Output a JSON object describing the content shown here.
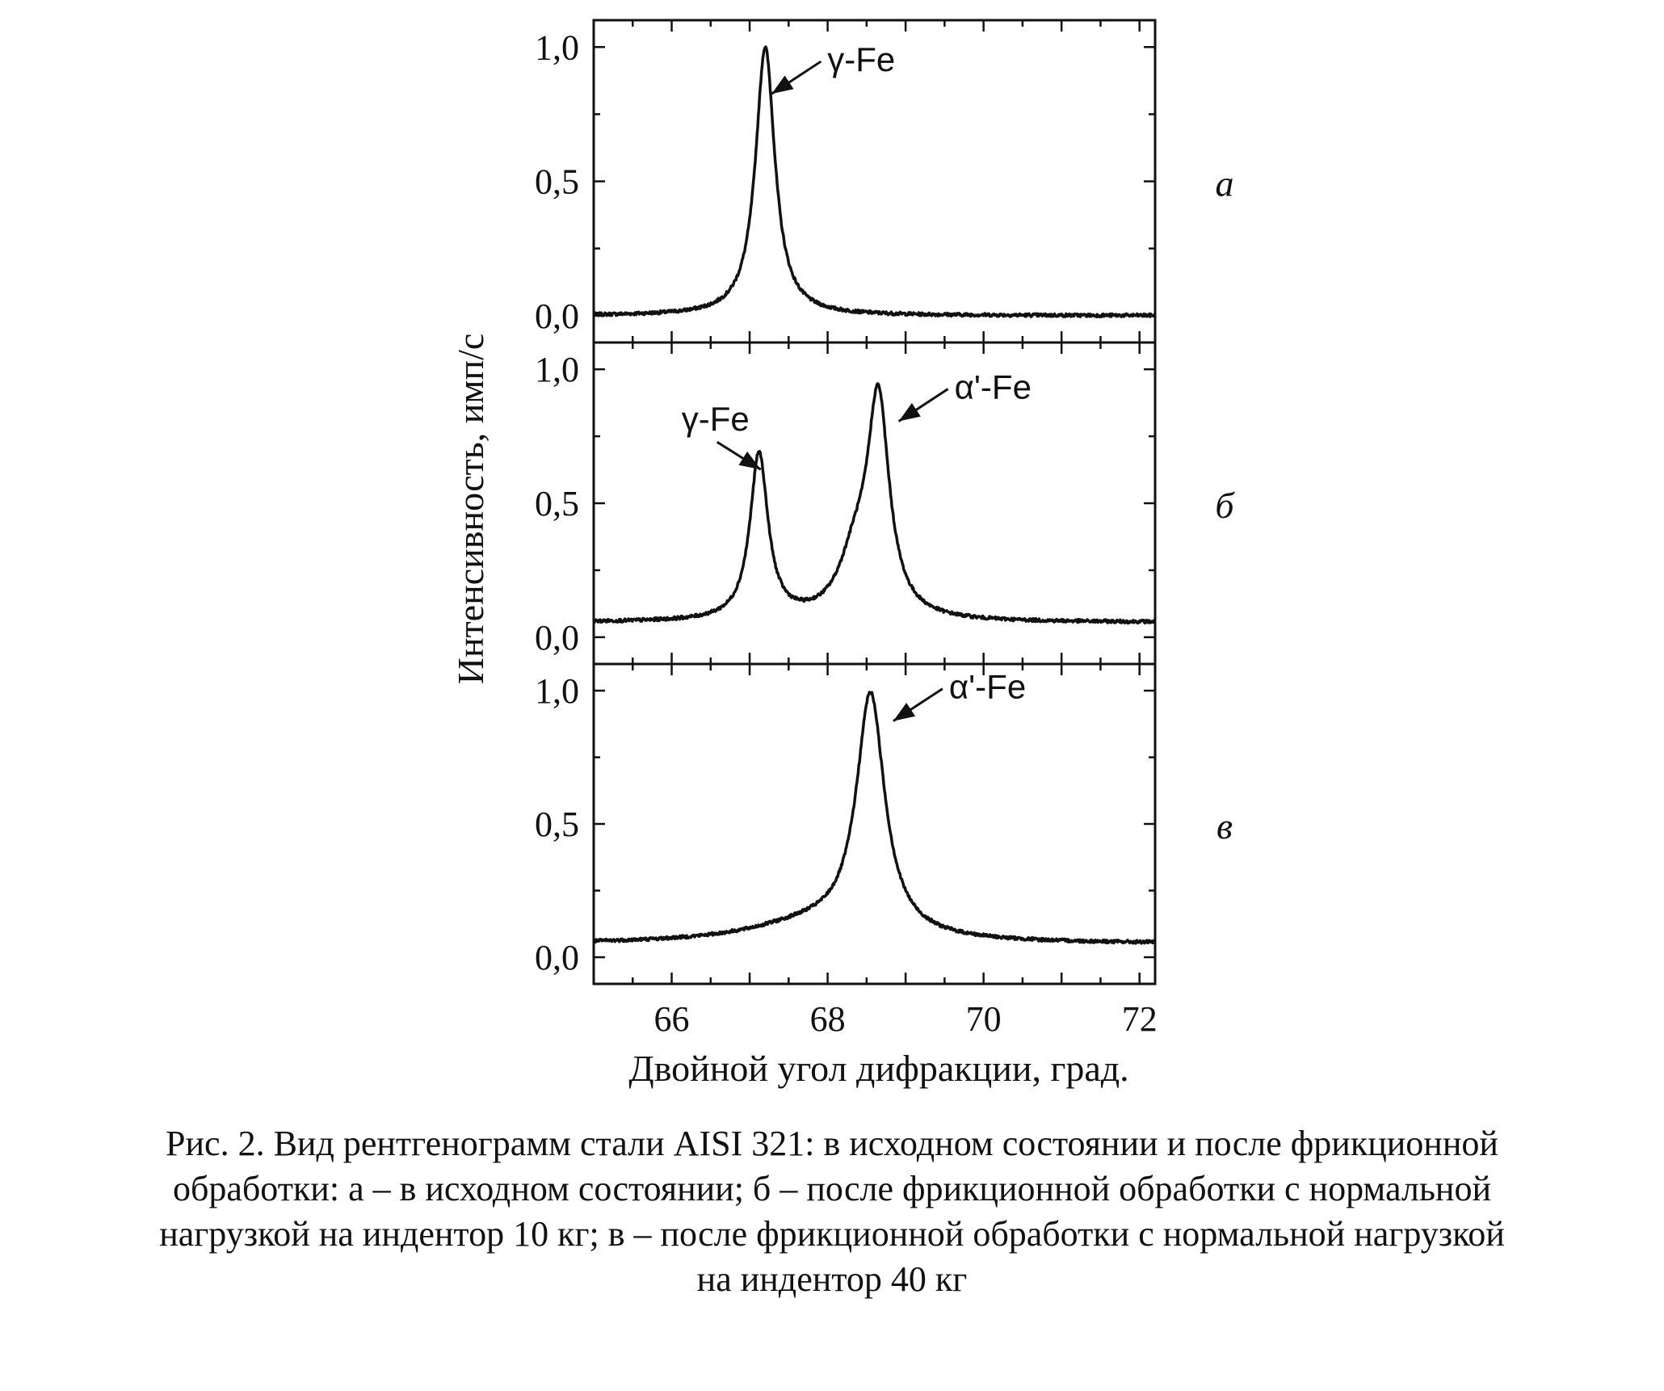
{
  "chart_data": {
    "type": "line",
    "xlabel": "Двойной угол дифракции, град.",
    "ylabel": "Интенсивность, имп/с",
    "xlim": [
      65,
      72.2
    ],
    "ylim": [
      -0.1,
      1.1
    ],
    "x_ticks": [
      "66",
      "68",
      "70",
      "72"
    ],
    "y_ticks": [
      "0,0",
      "0,5",
      "1,0"
    ],
    "grid": false,
    "panels": [
      {
        "label": "а",
        "baseline": 0.0,
        "peaks": [
          {
            "center": 67.2,
            "height": 1.0,
            "width": 0.15
          }
        ],
        "annotations": [
          {
            "text": "γ-Fe",
            "x": 67.22,
            "y": 0.82
          }
        ]
      },
      {
        "label": "б",
        "baseline": 0.055,
        "peaks": [
          {
            "center": 67.12,
            "height": 0.62,
            "width": 0.14
          },
          {
            "center": 68.35,
            "height": 0.2,
            "width": 0.25
          },
          {
            "center": 68.65,
            "height": 0.8,
            "width": 0.17
          }
        ],
        "annotations": [
          {
            "text": "γ-Fe",
            "x": 67.08,
            "y": 0.62
          },
          {
            "text": "α'-Fe",
            "x": 68.85,
            "y": 0.8
          }
        ]
      },
      {
        "label": "в",
        "baseline": 0.05,
        "broad": {
          "center": 67.8,
          "height": 0.07,
          "width": 1.0
        },
        "peaks": [
          {
            "center": 68.55,
            "height": 0.9,
            "width": 0.22
          }
        ],
        "annotations": [
          {
            "text": "α'-Fe",
            "x": 68.78,
            "y": 0.88
          }
        ]
      }
    ]
  },
  "caption": {
    "line1": "Рис. 2. Вид рентгенограмм стали AISI 321: в исходном состоянии и после фрикционной",
    "line2": "обработки: а – в исходном состоянии; б – после фрикционной обработки с нормальной",
    "line3": "нагрузкой на индентор 10 кг; в – после фрикционной обработки с нормальной нагрузкой",
    "line4": "на индентор 40 кг"
  }
}
